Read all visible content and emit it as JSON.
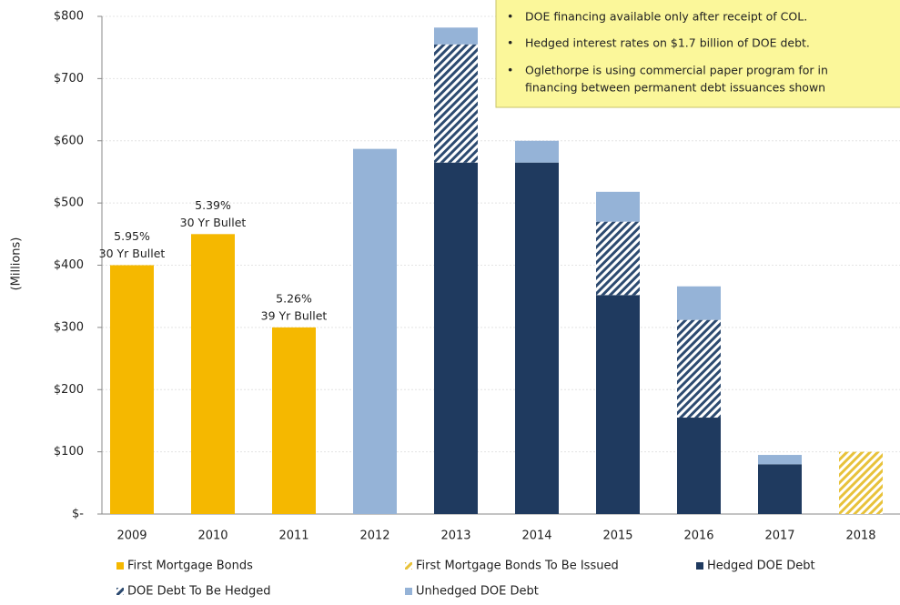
{
  "chart_data": {
    "type": "stacked_bar",
    "y_label": "(Millions)",
    "categories": [
      "2009",
      "2010",
      "2011",
      "2012",
      "2013",
      "2014",
      "2015",
      "2016",
      "2017",
      "2018"
    ],
    "series": [
      {
        "name": "First Mortgage Bonds",
        "color": "#f5b800",
        "hatch": false,
        "values": [
          400,
          450,
          300,
          null,
          null,
          null,
          null,
          null,
          null,
          null
        ]
      },
      {
        "name": "First Mortgage Bonds To Be Issued",
        "color": "#e8c23a",
        "hatch": true,
        "values": [
          null,
          null,
          null,
          null,
          null,
          null,
          null,
          null,
          null,
          100
        ]
      },
      {
        "name": "Hedged DOE Debt",
        "color": "#1f3a5f",
        "hatch": false,
        "values": [
          null,
          null,
          null,
          null,
          565,
          565,
          352,
          155,
          80,
          null
        ]
      },
      {
        "name": "DOE Debt To Be Hedged",
        "color": "#2c4a70",
        "hatch": true,
        "values": [
          null,
          null,
          null,
          null,
          190,
          null,
          118,
          157,
          null,
          null
        ]
      },
      {
        "name": "Unhedged DOE Debt",
        "color": "#95b3d7",
        "hatch": false,
        "values": [
          null,
          null,
          null,
          587,
          27,
          35,
          48,
          54,
          15,
          null
        ]
      }
    ],
    "ylim": [
      0,
      800
    ],
    "yticks": [
      {
        "value": 0,
        "label": "$-"
      },
      {
        "value": 100,
        "label": "$100"
      },
      {
        "value": 200,
        "label": "$200"
      },
      {
        "value": 300,
        "label": "$300"
      },
      {
        "value": 400,
        "label": "$400"
      },
      {
        "value": 500,
        "label": "$500"
      },
      {
        "value": 600,
        "label": "$600"
      },
      {
        "value": 700,
        "label": "$700"
      },
      {
        "value": 800,
        "label": "$800"
      }
    ],
    "grid": true,
    "annotations": [
      {
        "category": "2009",
        "lines": [
          "5.95%",
          "30 Yr Bullet"
        ]
      },
      {
        "category": "2010",
        "lines": [
          "5.39%",
          "30 Yr Bullet"
        ]
      },
      {
        "category": "2011",
        "lines": [
          "5.26%",
          "39 Yr Bullet"
        ]
      }
    ],
    "note": [
      "DOE financing available only after receipt of COL.",
      "Hedged interest rates on $1.7 billion of DOE debt.",
      "Oglethorpe is using commercial paper program for in",
      "financing between permanent debt issuances shown"
    ]
  }
}
